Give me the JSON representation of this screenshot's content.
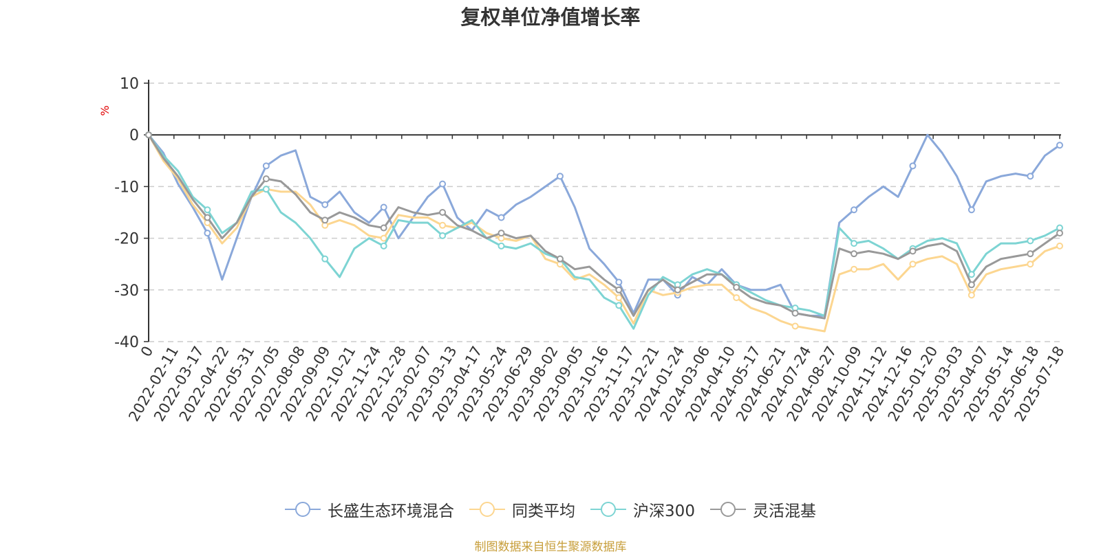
{
  "chart_data": {
    "type": "line",
    "title": "复权单位净值增长率",
    "ylabel": "%",
    "ylim": [
      -40,
      10
    ],
    "yticks": [
      10,
      0,
      -10,
      -20,
      -30,
      -40
    ],
    "ytick_labels": [
      "10",
      "0",
      "-10",
      "-20",
      "-30",
      "-40"
    ],
    "xtick_labels": [
      "0",
      "2022-02-11",
      "2022-03-17",
      "2022-04-22",
      "2022-05-31",
      "2022-07-05",
      "2022-08-08",
      "2022-09-09",
      "2022-10-21",
      "2022-11-24",
      "2022-12-28",
      "2023-02-07",
      "2023-03-13",
      "2023-04-17",
      "2023-05-24",
      "2023-06-29",
      "2023-08-02",
      "2023-09-05",
      "2023-10-16",
      "2023-11-17",
      "2023-12-21",
      "2024-01-24",
      "2024-03-06",
      "2024-04-10",
      "2024-05-17",
      "2024-06-21",
      "2024-07-24",
      "2024-08-27",
      "2024-10-09",
      "2024-11-12",
      "2024-12-16",
      "2025-01-20",
      "2025-03-03",
      "2025-04-07",
      "2025-05-14",
      "2025-06-18",
      "2025-07-18"
    ],
    "grid": "dashed horizontal",
    "legend_position": "bottom",
    "series": [
      {
        "name": "长盛生态环境混合",
        "color": "#8aa8da",
        "values": [
          0,
          -3.5,
          -9.5,
          -14,
          -19,
          -28,
          -20,
          -12,
          -6,
          -4,
          -3,
          -12,
          -13.5,
          -11,
          -15,
          -17,
          -14,
          -20,
          -16,
          -12,
          -9.5,
          -16,
          -18.5,
          -14.5,
          -16,
          -13.5,
          -12,
          -10,
          -8,
          -14,
          -22,
          -25,
          -28.5,
          -34.5,
          -28,
          -28,
          -31,
          -27.5,
          -29,
          -26,
          -29,
          -30,
          -30,
          -29,
          -34.5,
          -35,
          -35,
          -17,
          -14.5,
          -12,
          -10,
          -12,
          -6,
          0,
          -3.5,
          -8,
          -14.5,
          -9,
          -8,
          -7.5,
          -8,
          -4,
          -2
        ]
      },
      {
        "name": "同类平均",
        "color": "#fcd690",
        "values": [
          0,
          -5,
          -8.5,
          -13.5,
          -17,
          -21,
          -18,
          -12,
          -10.5,
          -11,
          -11,
          -13.5,
          -17.5,
          -16.5,
          -17.5,
          -19.5,
          -20,
          -15.5,
          -16,
          -16,
          -17.5,
          -18,
          -17,
          -19,
          -20,
          -20.5,
          -19.5,
          -24,
          -25,
          -28,
          -27,
          -29,
          -31.5,
          -36.5,
          -30,
          -31,
          -30.5,
          -29.5,
          -29,
          -29,
          -31.5,
          -33.5,
          -34.5,
          -36,
          -37,
          -37.5,
          -38,
          -27,
          -26,
          -26,
          -25,
          -28,
          -25,
          -24,
          -23.5,
          -25,
          -31,
          -27,
          -26,
          -25.5,
          -25,
          -22.5,
          -21.5
        ]
      },
      {
        "name": "沪深300",
        "color": "#7dd4d3",
        "values": [
          0,
          -4,
          -7,
          -12,
          -14.5,
          -19,
          -17,
          -11,
          -10.5,
          -15,
          -17,
          -20,
          -24,
          -27.5,
          -22,
          -20,
          -21.5,
          -16.5,
          -17,
          -17,
          -19.5,
          -18,
          -16.5,
          -20,
          -21.5,
          -22,
          -21,
          -23,
          -24,
          -27.5,
          -28,
          -31.5,
          -33,
          -37.5,
          -31,
          -27.5,
          -29,
          -27,
          -26,
          -27,
          -29,
          -30.5,
          -32,
          -33,
          -33.5,
          -34,
          -35,
          -18,
          -21,
          -20.5,
          -22,
          -24,
          -22,
          -20.5,
          -20,
          -21,
          -27,
          -23,
          -21,
          -21,
          -20.5,
          -19.5,
          -18
        ]
      },
      {
        "name": "灵活混基",
        "color": "#999999",
        "values": [
          0,
          -4.5,
          -8,
          -12.5,
          -16,
          -20,
          -17,
          -12,
          -8.5,
          -9,
          -11.5,
          -15,
          -16.5,
          -15,
          -16,
          -17.5,
          -18,
          -14,
          -15,
          -15.5,
          -15,
          -17.5,
          -18.5,
          -20,
          -19,
          -20,
          -19.5,
          -22.5,
          -24,
          -26,
          -25.5,
          -28,
          -30,
          -35,
          -30,
          -28,
          -30,
          -28.5,
          -27,
          -27,
          -29.5,
          -31.5,
          -32.5,
          -33,
          -34.5,
          -35,
          -35.5,
          -22,
          -23,
          -22.5,
          -23,
          -24,
          -22.5,
          -21.5,
          -21,
          -22.5,
          -29,
          -25.5,
          -24,
          -23.5,
          -23,
          -21,
          -19
        ]
      }
    ]
  },
  "source_note": "制图数据来自恒生聚源数据库"
}
